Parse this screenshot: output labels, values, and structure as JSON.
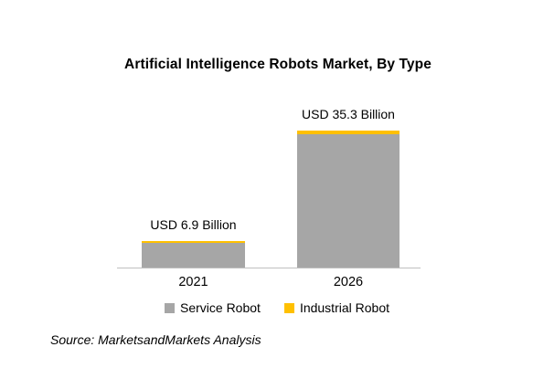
{
  "title": "Artificial Intelligence Robots Market, By Type",
  "source_note": "Source: MarketsandMarkets Analysis",
  "colors": {
    "service_robot": "#a6a6a6",
    "industrial_robot": "#ffc000",
    "axis": "#bfbfbf"
  },
  "chart_data": {
    "type": "bar",
    "stacked": true,
    "title": "Artificial Intelligence Robots Market, By Type",
    "categories": [
      "2021",
      "2026"
    ],
    "series": [
      {
        "name": "Service Robot",
        "color": "#a6a6a6",
        "values": [
          6.4,
          34.3
        ]
      },
      {
        "name": "Industrial Robot",
        "color": "#ffc000",
        "values": [
          0.5,
          1.0
        ]
      }
    ],
    "totals": [
      6.9,
      35.3
    ],
    "data_labels": [
      "USD 6.9 Billion",
      "USD 35.3 Billion"
    ],
    "unit": "USD Billion",
    "ylim": [
      0,
      35.3
    ],
    "grid": false,
    "legend_position": "bottom"
  },
  "legend": {
    "items": [
      {
        "label": "Service Robot",
        "color": "#a6a6a6"
      },
      {
        "label": "Industrial Robot",
        "color": "#ffc000"
      }
    ]
  }
}
